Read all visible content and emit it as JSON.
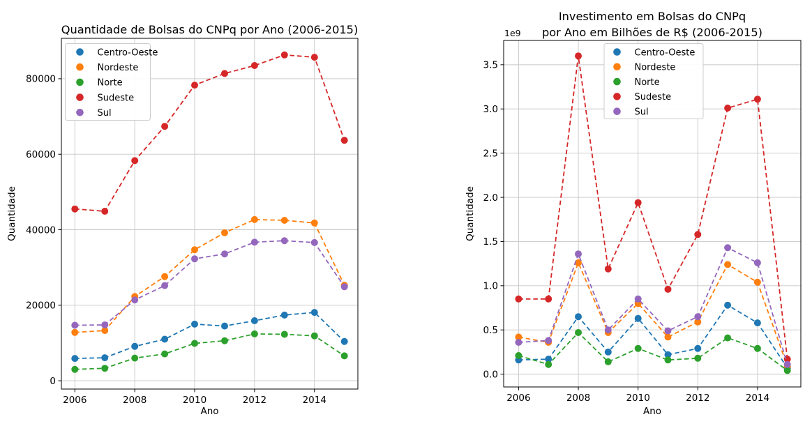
{
  "figure": {
    "background": "#ffffff",
    "description": "Two side-by-side dashed line charts of CNPq scholarship data by Brazilian region"
  },
  "regions": [
    "Centro-Oeste",
    "Nordeste",
    "Norte",
    "Sudeste",
    "Sul"
  ],
  "region_colors": {
    "Centro-Oeste": "#1f77b4",
    "Nordeste": "#ff7f0e",
    "Norte": "#2ca02c",
    "Sudeste": "#d62728",
    "Sul": "#9467bd"
  },
  "chart_data": [
    {
      "type": "line",
      "title": "Quantidade de Bolsas do CNPq por Ano (2006-2015)",
      "title_lines": [
        "Quantidade de Bolsas do CNPq por Ano (2006-2015)"
      ],
      "xlabel": "Ano",
      "ylabel": "Quantidade",
      "x": [
        2006,
        2007,
        2008,
        2009,
        2010,
        2011,
        2012,
        2013,
        2014,
        2015
      ],
      "xtick_labels": [
        "2006",
        "2008",
        "2010",
        "2012",
        "2014"
      ],
      "xtick_values": [
        2006,
        2008,
        2010,
        2012,
        2014
      ],
      "ytick_labels": [
        "0",
        "20000",
        "40000",
        "60000",
        "80000"
      ],
      "ytick_values": [
        0,
        20000,
        40000,
        60000,
        80000
      ],
      "xlim": [
        2005.55,
        2015.45
      ],
      "ylim": [
        -2200,
        90700
      ],
      "grid": true,
      "line_style": "dashed",
      "marker": "circle",
      "legend_position": "upper left",
      "series": [
        {
          "name": "Centro-Oeste",
          "color": "#1f77b4",
          "values": [
            5900,
            6100,
            9100,
            11000,
            15000,
            14500,
            15900,
            17400,
            18100,
            10400
          ]
        },
        {
          "name": "Nordeste",
          "color": "#ff7f0e",
          "values": [
            12800,
            13300,
            22300,
            27600,
            34700,
            39200,
            42700,
            42500,
            41800,
            25300
          ]
        },
        {
          "name": "Norte",
          "color": "#2ca02c",
          "values": [
            3000,
            3300,
            6000,
            7100,
            9900,
            10600,
            12400,
            12300,
            11900,
            6600
          ]
        },
        {
          "name": "Sudeste",
          "color": "#d62728",
          "values": [
            45500,
            44900,
            58300,
            67400,
            78300,
            81400,
            83500,
            86300,
            85700,
            63700
          ]
        },
        {
          "name": "Sul",
          "color": "#9467bd",
          "values": [
            14700,
            14800,
            21400,
            25200,
            32300,
            33600,
            36700,
            37100,
            36600,
            24900
          ]
        }
      ]
    },
    {
      "type": "line",
      "title": "Investimento em Bolsas do CNPq por Ano em Bilhões de R$ (2006-2015)",
      "title_lines": [
        "Investimento em Bolsas do CNPq",
        "por Ano em Bilhões de R$ (2006-2015)"
      ],
      "xlabel": "Ano",
      "ylabel": "Quantidade",
      "unit": "1e9 R$",
      "offset_text": "1e9",
      "x": [
        2006,
        2007,
        2008,
        2009,
        2010,
        2011,
        2012,
        2013,
        2014,
        2015
      ],
      "xtick_labels": [
        "2006",
        "2008",
        "2010",
        "2012",
        "2014"
      ],
      "xtick_values": [
        2006,
        2008,
        2010,
        2012,
        2014
      ],
      "ytick_labels": [
        "0.0",
        "0.5",
        "1.0",
        "1.5",
        "2.0",
        "2.5",
        "3.0",
        "3.5"
      ],
      "ytick_values": [
        0,
        0.5,
        1.0,
        1.5,
        2.0,
        2.5,
        3.0,
        3.5
      ],
      "xlim": [
        2005.5,
        2015.45
      ],
      "ylim": [
        -0.145,
        3.775
      ],
      "grid": true,
      "line_style": "dashed",
      "marker": "circle",
      "legend_position": "upper center",
      "series": [
        {
          "name": "Centro-Oeste",
          "color": "#1f77b4",
          "values": [
            0.16,
            0.17,
            0.65,
            0.25,
            0.63,
            0.22,
            0.29,
            0.78,
            0.58,
            0.07
          ]
        },
        {
          "name": "Nordeste",
          "color": "#ff7f0e",
          "values": [
            0.42,
            0.36,
            1.26,
            0.47,
            0.8,
            0.42,
            0.59,
            1.24,
            1.04,
            0.09
          ]
        },
        {
          "name": "Norte",
          "color": "#2ca02c",
          "values": [
            0.21,
            0.11,
            0.47,
            0.14,
            0.29,
            0.16,
            0.18,
            0.41,
            0.29,
            0.04
          ]
        },
        {
          "name": "Sudeste",
          "color": "#d62728",
          "values": [
            0.85,
            0.85,
            3.6,
            1.19,
            1.94,
            0.96,
            1.58,
            3.01,
            3.11,
            0.17
          ]
        },
        {
          "name": "Sul",
          "color": "#9467bd",
          "values": [
            0.36,
            0.38,
            1.36,
            0.5,
            0.85,
            0.49,
            0.65,
            1.43,
            1.26,
            0.11
          ]
        }
      ]
    }
  ]
}
